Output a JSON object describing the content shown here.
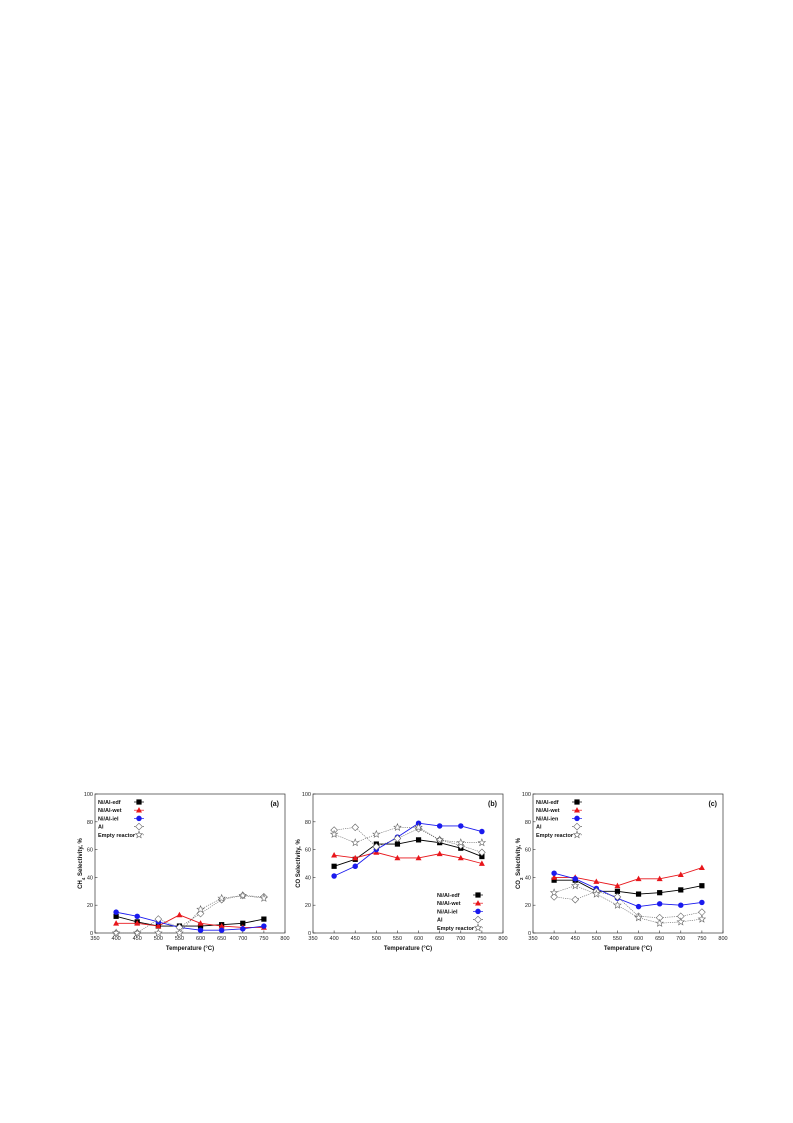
{
  "chart_data": [
    {
      "type": "line",
      "panel_label": "(a)",
      "xlabel": "Temperature (°C)",
      "ylabel": "CH4 Selectivity, %",
      "ylabel_main": "CH",
      "ylabel_sub": "4",
      "ylabel_rest": " Selectivity, %",
      "xlim": [
        350,
        800
      ],
      "ylim": [
        0,
        100
      ],
      "xticks": [
        "350",
        "400",
        "450",
        "500",
        "550",
        "600",
        "650",
        "700",
        "750",
        "800"
      ],
      "yticks": [
        "0",
        "20",
        "40",
        "60",
        "80",
        "100"
      ],
      "legend_position": "top-left",
      "x": [
        400,
        450,
        500,
        550,
        600,
        650,
        700,
        750
      ],
      "series": [
        {
          "name": "Ni/Al-edf",
          "marker": "square-filled",
          "color": "#000000",
          "dash": "solid",
          "values": [
            12,
            8,
            5,
            5,
            5,
            6,
            7,
            10
          ]
        },
        {
          "name": "Ni/Al-wet",
          "marker": "triangle-filled",
          "color": "#e8161b",
          "dash": "solid",
          "values": [
            7,
            7,
            5,
            13,
            7,
            5,
            4,
            4
          ]
        },
        {
          "name": "Ni/Al-ieI",
          "marker": "circle-filled",
          "color": "#1a1aee",
          "dash": "solid",
          "values": [
            15,
            12,
            8,
            4,
            2,
            2,
            3,
            5
          ]
        },
        {
          "name": "Al",
          "marker": "diamond-open",
          "color": "#666666",
          "dash": "dotted",
          "values": [
            0,
            0,
            10,
            4,
            14,
            24,
            27,
            26
          ]
        },
        {
          "name": "Empty reactor",
          "marker": "star-open",
          "color": "#666666",
          "dash": "dotted",
          "values": [
            0,
            0,
            0,
            0,
            17,
            25,
            27,
            25
          ]
        }
      ]
    },
    {
      "type": "line",
      "panel_label": "(b)",
      "xlabel": "Temperature (°C)",
      "ylabel": "CO Selectivity, %",
      "ylabel_main": "CO Selectivity, %",
      "ylabel_sub": "",
      "ylabel_rest": "",
      "xlim": [
        350,
        800
      ],
      "ylim": [
        0,
        100
      ],
      "xticks": [
        "350",
        "400",
        "450",
        "500",
        "550",
        "600",
        "650",
        "700",
        "750",
        "800"
      ],
      "yticks": [
        "0",
        "20",
        "40",
        "60",
        "80",
        "100"
      ],
      "legend_position": "bottom-right",
      "x": [
        400,
        450,
        500,
        550,
        600,
        650,
        700,
        750
      ],
      "series": [
        {
          "name": "Ni/Al-edf",
          "marker": "square-filled",
          "color": "#000000",
          "dash": "solid",
          "values": [
            48,
            53,
            64,
            64,
            67,
            65,
            61,
            55
          ]
        },
        {
          "name": "Ni/Al-wet",
          "marker": "triangle-filled",
          "color": "#e8161b",
          "dash": "solid",
          "values": [
            56,
            54,
            58,
            54,
            54,
            57,
            54,
            50
          ]
        },
        {
          "name": "Ni/Al-ieI",
          "marker": "circle-filled",
          "color": "#1a1aee",
          "dash": "solid",
          "values": [
            41,
            48,
            60,
            69,
            79,
            77,
            77,
            73
          ]
        },
        {
          "name": "Al",
          "marker": "diamond-open",
          "color": "#666666",
          "dash": "dotted",
          "values": [
            74,
            76,
            62,
            68,
            75,
            67,
            63,
            58
          ]
        },
        {
          "name": "Empty reactor",
          "marker": "star-open",
          "color": "#666666",
          "dash": "dotted",
          "values": [
            71,
            65,
            71,
            76,
            76,
            67,
            65,
            65
          ]
        }
      ]
    },
    {
      "type": "line",
      "panel_label": "(c)",
      "xlabel": "Temperature (°C)",
      "ylabel": "CO2 Selectivity, %",
      "ylabel_main": "CO",
      "ylabel_sub": "2",
      "ylabel_rest": " Selectivity, %",
      "xlim": [
        350,
        800
      ],
      "ylim": [
        0,
        100
      ],
      "xticks": [
        "350",
        "400",
        "450",
        "500",
        "550",
        "600",
        "650",
        "700",
        "750",
        "800"
      ],
      "yticks": [
        "0",
        "20",
        "40",
        "60",
        "80",
        "100"
      ],
      "legend_position": "top-left",
      "x": [
        400,
        450,
        500,
        550,
        600,
        650,
        700,
        750
      ],
      "series": [
        {
          "name": "Ni/Al-edf",
          "marker": "square-filled",
          "color": "#000000",
          "dash": "solid",
          "values": [
            38,
            38,
            30,
            30,
            28,
            29,
            31,
            34
          ]
        },
        {
          "name": "Ni/Al-wet",
          "marker": "triangle-filled",
          "color": "#e8161b",
          "dash": "solid",
          "values": [
            40,
            40,
            37,
            34,
            39,
            39,
            42,
            47
          ]
        },
        {
          "name": "Ni/Al-ien",
          "marker": "circle-filled",
          "color": "#1a1aee",
          "dash": "solid",
          "values": [
            43,
            39,
            32,
            25,
            19,
            21,
            20,
            22
          ]
        },
        {
          "name": "Al",
          "marker": "diamond-open",
          "color": "#666666",
          "dash": "dotted",
          "values": [
            26,
            24,
            30,
            26,
            12,
            11,
            12,
            15
          ]
        },
        {
          "name": "Empty reactor",
          "marker": "star-open",
          "color": "#666666",
          "dash": "dotted",
          "values": [
            29,
            34,
            28,
            20,
            11,
            7,
            8,
            10
          ]
        }
      ]
    }
  ]
}
